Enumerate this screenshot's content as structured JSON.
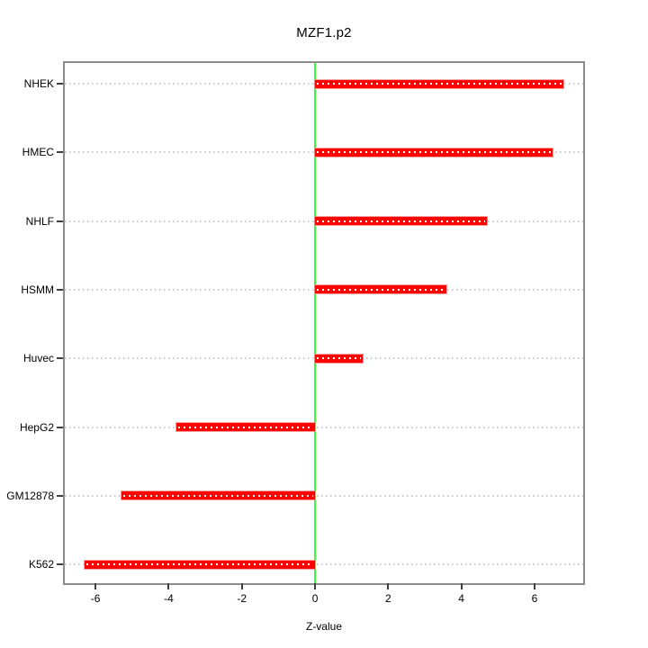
{
  "chart_data": {
    "type": "bar",
    "orientation": "horizontal",
    "title": "MZF1.p2",
    "xlabel": "Z-value",
    "ylabel": "",
    "categories": [
      "NHEK",
      "HMEC",
      "NHLF",
      "HSMM",
      "Huvec",
      "HepG2",
      "GM12878",
      "K562"
    ],
    "values": [
      6.8,
      6.5,
      4.7,
      3.6,
      1.3,
      -3.8,
      -5.3,
      -6.3
    ],
    "xlim": [
      -6.84,
      7.33
    ],
    "xticks": [
      -6,
      -4,
      -2,
      0,
      2,
      4,
      6
    ],
    "grid": "horizontal dotted line at each category",
    "legend": "none",
    "zero_reference_line": 0,
    "colors": {
      "bar": "#ff0000",
      "bar_edge": "#ff8080",
      "bar_center_dashes": "#ffffff",
      "zero_line": "#33ff33",
      "gridline": "#c9c9c9",
      "box_border": "#8c8c8c",
      "tick": "#404040",
      "text": "#000000",
      "background": "#ffffff"
    }
  }
}
